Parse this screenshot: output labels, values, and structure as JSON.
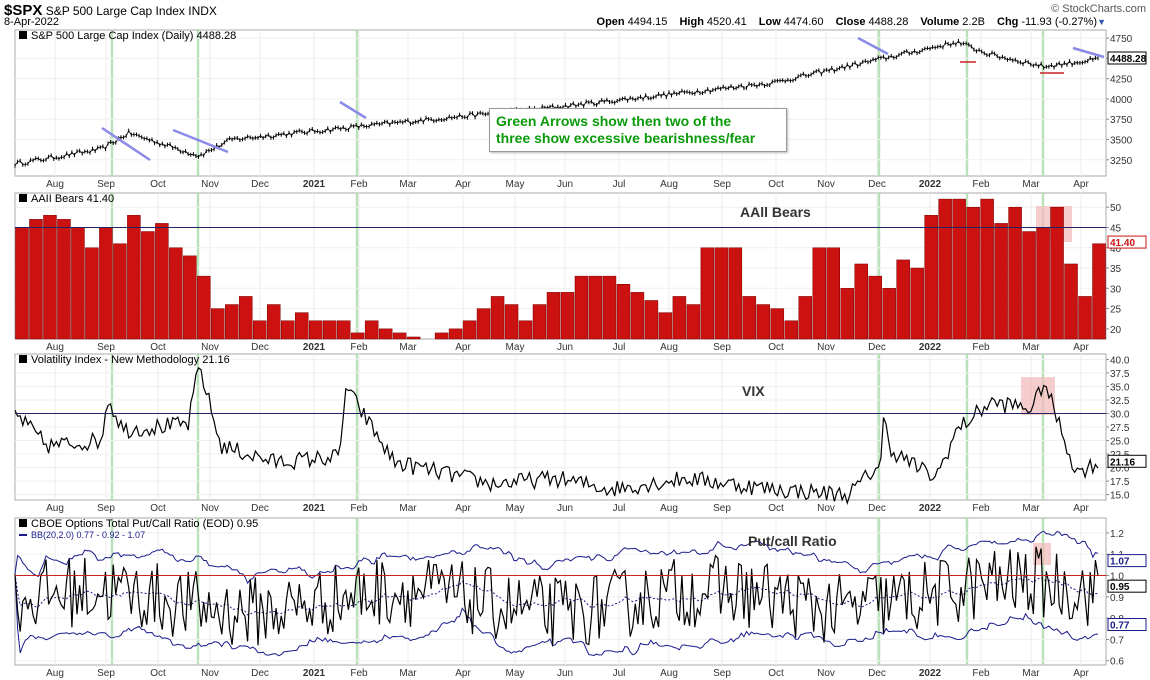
{
  "header": {
    "symbol": "$SPX",
    "name": "S&P 500 Large Cap Index",
    "exchange": "INDX",
    "date": "8-Apr-2022",
    "open_label": "Open",
    "open": "4494.15",
    "high_label": "High",
    "high": "4520.41",
    "low_label": "Low",
    "low": "4474.60",
    "close_label": "Close",
    "close": "4488.28",
    "volume_label": "Volume",
    "volume": "2.2B",
    "chg_label": "Chg",
    "chg": "-11.93 (-0.27%)",
    "credit": "© StockCharts.com"
  },
  "annotation": {
    "line1": "Green Arrows show then two of the",
    "line2": "three show excessive bearishness/fear"
  },
  "colors": {
    "bars": "#cc1111",
    "trend": "#8a8ae8",
    "green_line": "#a8dca8",
    "highlight": "#f2b8b8",
    "bb": "#1a1a8c",
    "ref_red": "#cc2222",
    "ref_blue": "#222266"
  },
  "month_labels": [
    "Aug",
    "Sep",
    "Oct",
    "Nov",
    "Dec",
    "2021",
    "Feb",
    "Mar",
    "Apr",
    "May",
    "Jun",
    "Jul",
    "Aug",
    "Sep",
    "Oct",
    "Nov",
    "Dec",
    "2022",
    "Feb",
    "Mar",
    "Apr"
  ],
  "chart_data": [
    {
      "type": "line",
      "title": "S&P 500 Large Cap Index (Daily) 4488.28",
      "last_value": "4488.28",
      "y_ticks": [
        "4750",
        "4500",
        "4250",
        "4000",
        "3750",
        "3500",
        "3250"
      ],
      "ylim": [
        3050,
        4850
      ],
      "x_anchors": [
        0,
        0.08,
        0.105,
        0.17,
        0.2,
        0.34,
        0.5,
        0.7,
        0.87,
        0.9,
        0.95,
        1.0
      ],
      "values": [
        3200,
        3380,
        3580,
        3300,
        3500,
        3690,
        3900,
        4200,
        4700,
        4550,
        4400,
        4488
      ],
      "series": [
        {
          "name": "S&P 500 Large Cap Index (Daily)"
        }
      ]
    },
    {
      "type": "bar",
      "title": "AAII Bears 41.40",
      "label": "AAll Bears",
      "last_value": "41.40",
      "reference_line": 45,
      "y_ticks": [
        "50",
        "45",
        "40",
        "35",
        "30",
        "25",
        "20"
      ],
      "ylim": [
        17.5,
        53.5
      ],
      "values": [
        45,
        47,
        48,
        47,
        45,
        40,
        45,
        41,
        48,
        44,
        46,
        40,
        38,
        33,
        25,
        26,
        28,
        22,
        26,
        22,
        24,
        22,
        22,
        22,
        19,
        22,
        20,
        19,
        18,
        16,
        19,
        20,
        22,
        25,
        28,
        26,
        22,
        26,
        29,
        29,
        33,
        33,
        33,
        31,
        29,
        27,
        24,
        28,
        26,
        40,
        40,
        40,
        28,
        26,
        25,
        22,
        28,
        40,
        40,
        30,
        36,
        33,
        30,
        37,
        35,
        48,
        52,
        52,
        50,
        52,
        46,
        50,
        44,
        45,
        50,
        36,
        28,
        41
      ]
    },
    {
      "type": "line",
      "title": "Volatility Index - New Methodology 21.16",
      "label": "VIX",
      "last_value": "21.16",
      "reference_line": 30,
      "y_ticks": [
        "40.0",
        "37.5",
        "35.0",
        "32.5",
        "30.0",
        "27.5",
        "25.0",
        "22.5",
        "20.0",
        "17.5",
        "15.0"
      ],
      "ylim": [
        14.0,
        41.0
      ],
      "x_anchors": [
        0,
        0.03,
        0.08,
        0.085,
        0.1,
        0.16,
        0.17,
        0.19,
        0.24,
        0.3,
        0.305,
        0.35,
        0.44,
        0.5,
        0.55,
        0.62,
        0.7,
        0.77,
        0.8,
        0.8,
        0.81,
        0.85,
        0.87,
        0.9,
        0.94,
        0.95,
        0.98,
        1.0
      ],
      "values": [
        30,
        24,
        25,
        33,
        27,
        28,
        39,
        24,
        21,
        22,
        35,
        21,
        17,
        18,
        16,
        18,
        16,
        15,
        21,
        30,
        23,
        18,
        27,
        32,
        31,
        36,
        19,
        21
      ]
    },
    {
      "type": "line",
      "title": "CBOE Options Total Put/Call Ratio (EOD) 0.95",
      "bb_label": "BB(20,2.0) 0.77 - 0.92 - 1.07",
      "label": "Put/call Ratio",
      "last_value": "0.95",
      "bb_upper_last": "1.07",
      "bb_mid_last": "0.92",
      "bb_lower_last": "0.77",
      "reference_line": 1.0,
      "y_ticks": [
        "1.2",
        "1.1",
        "1.0",
        "0.9",
        "0.8",
        "0.7",
        "0.6"
      ],
      "ylim": [
        0.58,
        1.27
      ],
      "series": [
        {
          "name": "CBOE Options Total Put/Call Ratio (EOD)"
        },
        {
          "name": "BB(20,2.0)"
        }
      ]
    }
  ]
}
